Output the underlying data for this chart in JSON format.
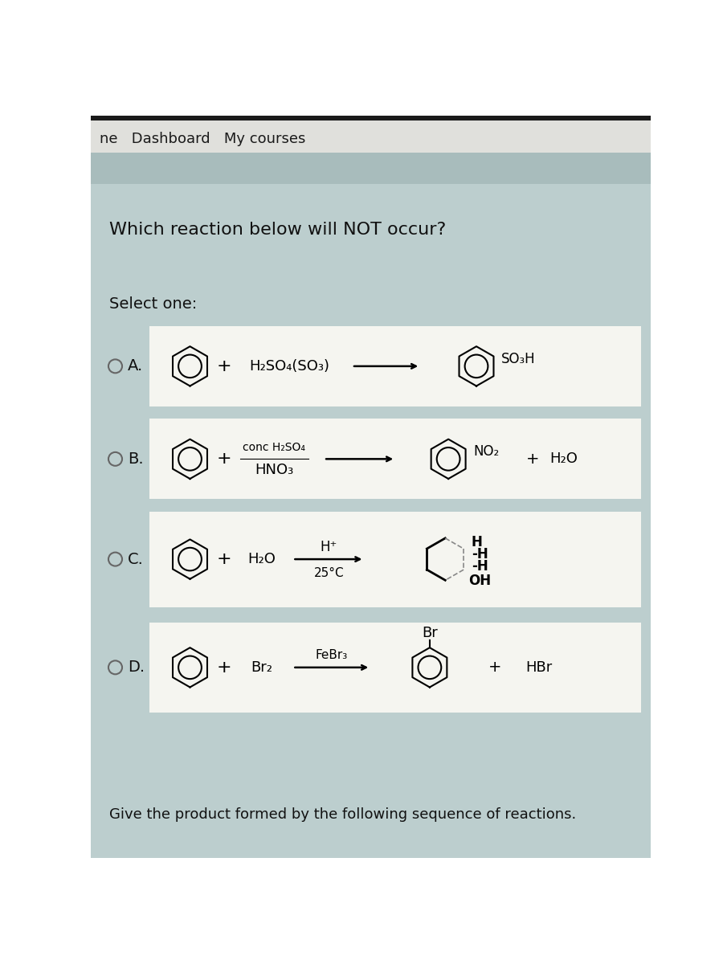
{
  "bg_light_gray": "#e8e8e4",
  "bg_teal": "#a8c0c0",
  "bg_teal_dark": "#98b4b4",
  "bg_white": "#ffffff",
  "nav_text": "ne   Dashboard   My courses",
  "question": "Which reaction below will NOT occur?",
  "select_text": "Select one:",
  "options": [
    "A.",
    "B.",
    "C.",
    "D."
  ],
  "reaction_A_reagent": "H₂SO₄(SO₃)",
  "reaction_A_product": "SO₃H",
  "reaction_B_reagent2": "conc H₂SO₄",
  "reaction_B_reagent1": "HNO₃",
  "reaction_B_product": "NO₂",
  "reaction_B_byproduct": "H₂O",
  "reaction_C_reagent": "H₂O",
  "reaction_C_cat1": "H⁺",
  "reaction_C_cat2": "25°C",
  "reaction_C_H1": "H",
  "reaction_C_H2": "-H",
  "reaction_C_H3": "-H",
  "reaction_C_OH": "OH",
  "reaction_D_reagent": "Br₂",
  "reaction_D_cat": "FeBr₃",
  "reaction_D_product": "Br",
  "reaction_D_byproduct": "HBr",
  "footer": "Give the product formed by the following sequence of reactions."
}
